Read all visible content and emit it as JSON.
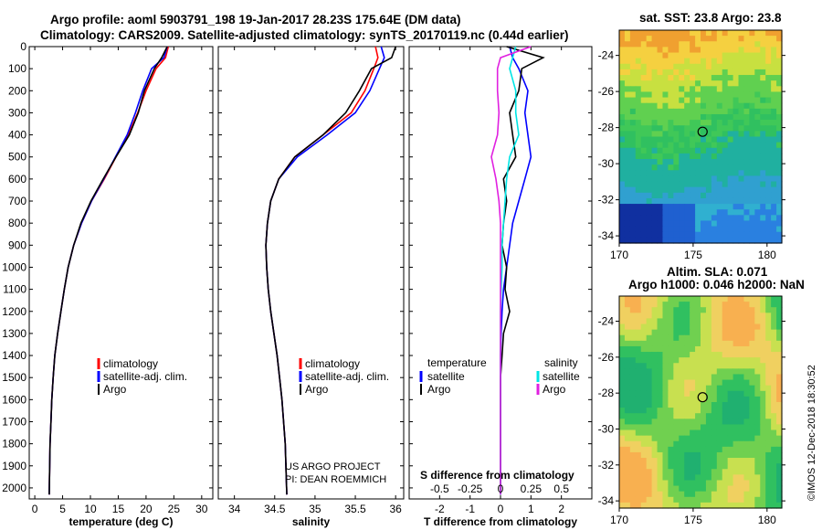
{
  "title_line1": "Argo profile: aoml 5903791_198 19-Jan-2017 28.23S 175.64E (DM data)",
  "title_line2": "Climatology: CARS2009. Satellite-adjusted climatology: synTS_20170119.nc (0.44d earlier)",
  "legends": {
    "temp_items": [
      "climatology",
      "satellite-adj. clim.",
      "Argo"
    ],
    "sal_items": [
      "climatology",
      "satellite-adj. clim.",
      "Argo"
    ],
    "diff_temperature_header": "temperature",
    "diff_salinity_header": "salinity",
    "diff_temp_items": [
      "satellite",
      "Argo"
    ],
    "diff_sal_items": [
      "satellite",
      "Argo"
    ]
  },
  "notes": {
    "project": "US ARGO PROJECT",
    "pi": "PI: DEAN ROEMMICH",
    "s_diff_title": "S difference from climatology",
    "copyright": "©IMOS 12-Dec-2018 18:30:52"
  },
  "maps": {
    "sst_title": "sat. SST: 23.8 Argo: 23.8",
    "sla_title_line1": "Altim. SLA: 0.071",
    "sla_title_line2": "Argo h1000: 0.046 h2000: NaN",
    "lon_ticks": [
      "170",
      "175",
      "180"
    ],
    "lat_ticks": [
      "-24",
      "-26",
      "-28",
      "-30",
      "-32",
      "-34"
    ],
    "marker_lon": 175.64,
    "marker_lat": -28.23
  },
  "colors": {
    "climatology": "#ff0000",
    "satellite": "#0000ff",
    "argo": "#000000",
    "sal_satellite": "#00e5e5",
    "sal_argo": "#e020e0"
  },
  "chart_data": [
    {
      "type": "line",
      "name": "temperature-profile",
      "xlabel": "temperature (deg C)",
      "ylabel": "",
      "xlim": [
        -1,
        32
      ],
      "ylim": [
        2050,
        0
      ],
      "xticks": [
        0,
        5,
        10,
        15,
        20,
        25,
        30
      ],
      "yticks": [
        0,
        100,
        200,
        300,
        400,
        500,
        600,
        700,
        800,
        900,
        1000,
        1100,
        1200,
        1300,
        1400,
        1500,
        1600,
        1700,
        1800,
        1900,
        2000
      ],
      "series": [
        {
          "name": "climatology",
          "color": "#ff0000",
          "x": [
            24.0,
            23.5,
            21.8,
            20.0,
            18.5,
            16.8,
            14.6,
            12.5,
            10.2,
            8.4,
            7.0,
            6.0,
            5.3,
            4.7,
            4.1,
            3.6,
            3.3,
            3.05,
            2.9,
            2.75,
            2.6
          ],
          "y": [
            0,
            50,
            100,
            200,
            300,
            400,
            500,
            600,
            700,
            800,
            900,
            1000,
            1100,
            1200,
            1300,
            1400,
            1500,
            1600,
            1700,
            1800,
            2030
          ]
        },
        {
          "name": "satellite-adj. clim.",
          "color": "#0000ff",
          "x": [
            23.8,
            23.2,
            21.0,
            19.4,
            18.1,
            16.6,
            14.5,
            12.4,
            10.2,
            8.4,
            7.0,
            6.0,
            5.3,
            4.7,
            4.1,
            3.6,
            3.3,
            3.05,
            2.9,
            2.75,
            2.6
          ],
          "y": [
            0,
            50,
            100,
            200,
            300,
            400,
            500,
            600,
            700,
            800,
            900,
            1000,
            1100,
            1200,
            1300,
            1400,
            1500,
            1600,
            1700,
            1800,
            2030
          ]
        },
        {
          "name": "Argo",
          "color": "#000000",
          "x": [
            23.8,
            22.8,
            21.5,
            19.7,
            18.6,
            17.0,
            14.6,
            12.3,
            10.1,
            8.3,
            7.0,
            6.0,
            5.3,
            4.7,
            4.1,
            3.6,
            3.3,
            3.05,
            2.9,
            2.75,
            2.6
          ],
          "y": [
            0,
            50,
            100,
            200,
            300,
            400,
            500,
            600,
            700,
            800,
            900,
            1000,
            1100,
            1200,
            1300,
            1400,
            1500,
            1600,
            1700,
            1800,
            2030
          ]
        }
      ]
    },
    {
      "type": "line",
      "name": "salinity-profile",
      "xlabel": "salinity",
      "ylabel": "",
      "xlim": [
        33.8,
        36.1
      ],
      "ylim": [
        2050,
        0
      ],
      "xticks": [
        34,
        34.5,
        35,
        35.5,
        36
      ],
      "series": [
        {
          "name": "climatology",
          "color": "#ff0000",
          "x": [
            35.75,
            35.78,
            35.73,
            35.62,
            35.45,
            35.1,
            34.75,
            34.55,
            34.45,
            34.41,
            34.39,
            34.4,
            34.42,
            34.45,
            34.49,
            34.53,
            34.56,
            34.59,
            34.61,
            34.63,
            34.65
          ],
          "y": [
            0,
            50,
            100,
            200,
            300,
            400,
            500,
            600,
            700,
            800,
            900,
            1000,
            1100,
            1200,
            1300,
            1400,
            1500,
            1600,
            1700,
            1800,
            2030
          ]
        },
        {
          "name": "satellite-adj. clim.",
          "color": "#0000ff",
          "x": [
            35.82,
            35.86,
            35.8,
            35.68,
            35.5,
            35.15,
            34.78,
            34.55,
            34.45,
            34.41,
            34.39,
            34.4,
            34.42,
            34.45,
            34.49,
            34.53,
            34.56,
            34.59,
            34.61,
            34.63,
            34.65
          ],
          "y": [
            0,
            50,
            100,
            200,
            300,
            400,
            500,
            600,
            700,
            800,
            900,
            1000,
            1100,
            1200,
            1300,
            1400,
            1500,
            1600,
            1700,
            1800,
            2030
          ]
        },
        {
          "name": "Argo",
          "color": "#000000",
          "x": [
            36.0,
            35.95,
            35.7,
            35.55,
            35.38,
            35.1,
            34.75,
            34.55,
            34.45,
            34.41,
            34.39,
            34.4,
            34.42,
            34.45,
            34.49,
            34.53,
            34.56,
            34.59,
            34.61,
            34.63,
            34.65
          ],
          "y": [
            0,
            50,
            100,
            200,
            300,
            400,
            500,
            600,
            700,
            800,
            900,
            1000,
            1100,
            1200,
            1300,
            1400,
            1500,
            1600,
            1700,
            1800,
            2030
          ]
        }
      ]
    },
    {
      "type": "line",
      "name": "difference-profile",
      "xlabel": "T difference from climatology",
      "ylabel": "",
      "xlim": [
        -3,
        3
      ],
      "ylim": [
        2050,
        0
      ],
      "xticks": [
        -2,
        -1,
        0,
        1,
        2
      ],
      "xtick_labels": [
        "-2",
        "-1",
        "0",
        "1",
        "2"
      ],
      "s_diff_xticks": [
        -0.5,
        -0.25,
        0,
        0.25,
        0.5
      ],
      "s_diff_xtick_labels": [
        "-0.5",
        "-0.25",
        "0",
        "0.25",
        "0.5"
      ],
      "series": [
        {
          "name": "satellite",
          "color": "#0000ff",
          "x": [
            0.3,
            0.4,
            0.6,
            0.9,
            0.8,
            0.9,
            1.0,
            0.8,
            0.6,
            0.4,
            0.3,
            0.2,
            0.1,
            0.05,
            0.02,
            0.0,
            0.0,
            0.0,
            0.0,
            0.0,
            0.0
          ],
          "y": [
            0,
            50,
            100,
            200,
            300,
            400,
            500,
            600,
            700,
            800,
            900,
            1000,
            1100,
            1200,
            1300,
            1400,
            1500,
            1600,
            1700,
            1800,
            2030
          ]
        },
        {
          "name": "Argo",
          "color": "#000000",
          "x": [
            0.2,
            1.4,
            0.7,
            0.6,
            0.3,
            0.4,
            0.5,
            0.1,
            0.2,
            0.1,
            0.05,
            0.2,
            0.15,
            0.3,
            0.1,
            0.05,
            0.0,
            0.0,
            0.0,
            0.0,
            0.0
          ],
          "y": [
            0,
            50,
            100,
            200,
            300,
            400,
            500,
            600,
            700,
            800,
            900,
            1000,
            1100,
            1200,
            1300,
            1400,
            1500,
            1600,
            1700,
            1800,
            2030
          ]
        },
        {
          "name": "salinity satellite",
          "color": "#00e5e5",
          "x": [
            0.5,
            0.4,
            0.3,
            0.5,
            0.5,
            0.6,
            0.3,
            0.2,
            0.15,
            0.1,
            0.05,
            0.05,
            0.02,
            0.0,
            0.0,
            0.0,
            0.0,
            0.0,
            0.0,
            0.0,
            0.0
          ],
          "y": [
            0,
            50,
            100,
            200,
            300,
            400,
            500,
            600,
            700,
            800,
            900,
            1000,
            1100,
            1200,
            1300,
            1400,
            1500,
            1600,
            1700,
            1800,
            2030
          ]
        },
        {
          "name": "salinity Argo",
          "color": "#e020e0",
          "x": [
            1.0,
            0.0,
            -0.1,
            -0.1,
            -0.05,
            -0.1,
            -0.3,
            -0.15,
            -0.05,
            0.0,
            0.0,
            0.0,
            0.0,
            0.0,
            0.0,
            0.0,
            0.0,
            0.0,
            0.0,
            0.0,
            0.0
          ],
          "y": [
            0,
            50,
            100,
            200,
            300,
            400,
            500,
            600,
            700,
            800,
            900,
            1000,
            1100,
            1200,
            1300,
            1400,
            1500,
            1600,
            1700,
            1800,
            2030
          ]
        }
      ]
    }
  ]
}
